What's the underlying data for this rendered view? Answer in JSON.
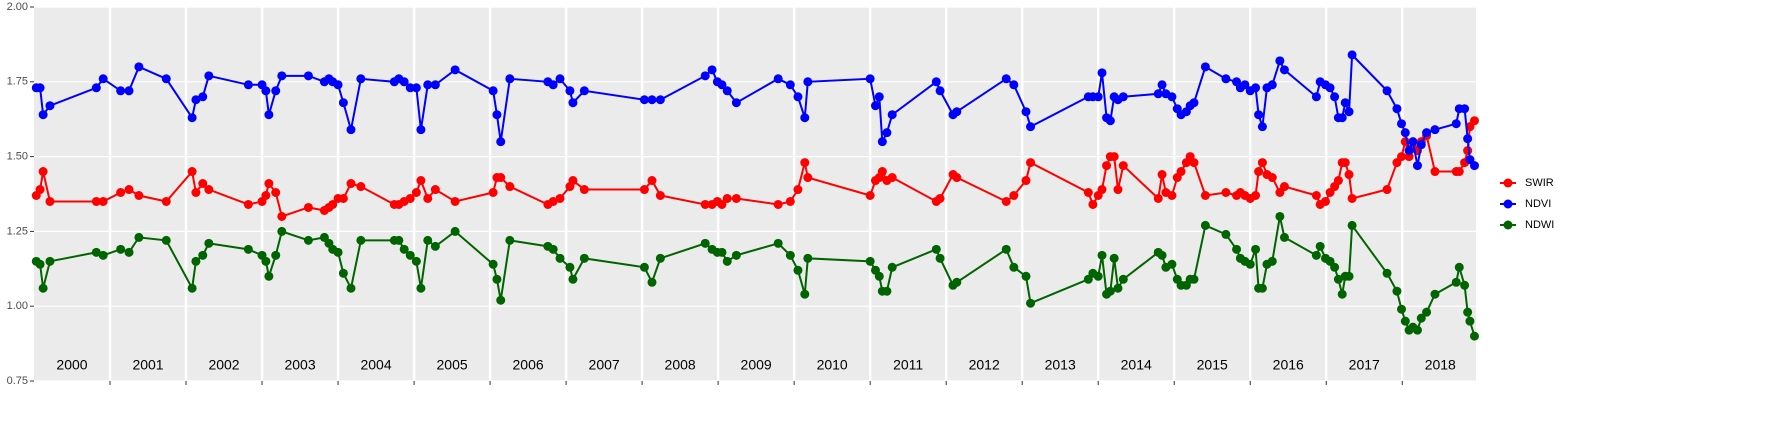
{
  "chart_data": {
    "type": "line",
    "x": [
      2000.03,
      2000.08,
      2000.12,
      2000.21,
      2000.82,
      2000.91,
      2001.14,
      2001.25,
      2001.38,
      2001.74,
      2002.08,
      2002.13,
      2002.22,
      2002.3,
      2002.82,
      2003.0,
      2003.05,
      2003.09,
      2003.18,
      2003.26,
      2003.61,
      2003.82,
      2003.88,
      2003.93,
      2004.0,
      2004.07,
      2004.17,
      2004.3,
      2004.74,
      2004.8,
      2004.87,
      2004.95,
      2005.03,
      2005.09,
      2005.18,
      2005.28,
      2005.54,
      2006.04,
      2006.09,
      2006.14,
      2006.26,
      2006.76,
      2006.83,
      2006.92,
      2007.05,
      2007.09,
      2007.24,
      2008.03,
      2008.13,
      2008.24,
      2008.83,
      2008.92,
      2008.99,
      2009.05,
      2009.12,
      2009.24,
      2009.79,
      2009.95,
      2010.05,
      2010.14,
      2010.18,
      2011.0,
      2011.07,
      2011.12,
      2011.16,
      2011.22,
      2011.29,
      2011.87,
      2011.92,
      2012.09,
      2012.14,
      2012.79,
      2012.89,
      2013.05,
      2013.11,
      2013.87,
      2013.93,
      2014.0,
      2014.05,
      2014.11,
      2014.16,
      2014.21,
      2014.26,
      2014.33,
      2014.79,
      2014.84,
      2014.89,
      2014.97,
      2015.04,
      2015.09,
      2015.16,
      2015.21,
      2015.26,
      2015.41,
      2015.68,
      2015.82,
      2015.87,
      2015.93,
      2016.0,
      2016.07,
      2016.11,
      2016.16,
      2016.22,
      2016.29,
      2016.39,
      2016.45,
      2016.87,
      2016.92,
      2016.99,
      2017.05,
      2017.11,
      2017.16,
      2017.21,
      2017.25,
      2017.3,
      2017.34,
      2017.8,
      2017.93,
      2017.99,
      2018.04,
      2018.09,
      2018.14,
      2018.2,
      2018.25,
      2018.32,
      2018.43,
      2018.71,
      2018.75,
      2018.82,
      2018.86,
      2018.89,
      2018.95
    ],
    "series": [
      {
        "name": "SWIR",
        "color": "#ff0000",
        "values": [
          1.37,
          1.39,
          1.45,
          1.35,
          1.35,
          1.35,
          1.38,
          1.39,
          1.37,
          1.35,
          1.45,
          1.38,
          1.41,
          1.39,
          1.34,
          1.35,
          1.37,
          1.41,
          1.38,
          1.3,
          1.33,
          1.32,
          1.33,
          1.34,
          1.36,
          1.36,
          1.41,
          1.4,
          1.34,
          1.34,
          1.35,
          1.36,
          1.38,
          1.42,
          1.36,
          1.39,
          1.35,
          1.38,
          1.43,
          1.43,
          1.4,
          1.34,
          1.35,
          1.36,
          1.4,
          1.42,
          1.39,
          1.39,
          1.42,
          1.37,
          1.34,
          1.34,
          1.35,
          1.34,
          1.36,
          1.36,
          1.34,
          1.35,
          1.39,
          1.48,
          1.43,
          1.37,
          1.42,
          1.43,
          1.45,
          1.42,
          1.43,
          1.35,
          1.36,
          1.44,
          1.43,
          1.35,
          1.37,
          1.42,
          1.48,
          1.38,
          1.34,
          1.37,
          1.39,
          1.47,
          1.5,
          1.5,
          1.39,
          1.47,
          1.36,
          1.44,
          1.38,
          1.37,
          1.43,
          1.45,
          1.48,
          1.5,
          1.48,
          1.37,
          1.38,
          1.37,
          1.38,
          1.37,
          1.36,
          1.37,
          1.45,
          1.48,
          1.44,
          1.43,
          1.38,
          1.4,
          1.37,
          1.34,
          1.35,
          1.38,
          1.4,
          1.42,
          1.48,
          1.48,
          1.44,
          1.36,
          1.39,
          1.48,
          1.5,
          1.55,
          1.5,
          1.53,
          1.52,
          1.55,
          1.57,
          1.45,
          1.45,
          1.45,
          1.48,
          1.52,
          1.6,
          1.62
        ]
      },
      {
        "name": "NDVI",
        "color": "#0000ff",
        "values": [
          1.73,
          1.73,
          1.64,
          1.67,
          1.73,
          1.76,
          1.72,
          1.72,
          1.8,
          1.76,
          1.63,
          1.69,
          1.7,
          1.77,
          1.74,
          1.74,
          1.72,
          1.64,
          1.72,
          1.77,
          1.77,
          1.75,
          1.76,
          1.75,
          1.74,
          1.68,
          1.59,
          1.76,
          1.75,
          1.76,
          1.75,
          1.73,
          1.73,
          1.59,
          1.74,
          1.74,
          1.79,
          1.72,
          1.64,
          1.55,
          1.76,
          1.75,
          1.74,
          1.76,
          1.72,
          1.68,
          1.72,
          1.69,
          1.69,
          1.69,
          1.77,
          1.79,
          1.75,
          1.74,
          1.72,
          1.68,
          1.76,
          1.74,
          1.7,
          1.63,
          1.75,
          1.76,
          1.67,
          1.7,
          1.55,
          1.58,
          1.64,
          1.75,
          1.72,
          1.64,
          1.65,
          1.76,
          1.74,
          1.65,
          1.6,
          1.7,
          1.7,
          1.7,
          1.78,
          1.63,
          1.62,
          1.7,
          1.69,
          1.7,
          1.71,
          1.74,
          1.71,
          1.7,
          1.66,
          1.64,
          1.65,
          1.67,
          1.68,
          1.8,
          1.76,
          1.75,
          1.73,
          1.74,
          1.72,
          1.73,
          1.64,
          1.6,
          1.73,
          1.74,
          1.82,
          1.79,
          1.7,
          1.75,
          1.74,
          1.73,
          1.7,
          1.63,
          1.63,
          1.68,
          1.65,
          1.84,
          1.72,
          1.66,
          1.61,
          1.58,
          1.52,
          1.55,
          1.47,
          1.54,
          1.58,
          1.59,
          1.61,
          1.66,
          1.66,
          1.56,
          1.49,
          1.47
        ]
      },
      {
        "name": "NDWI",
        "color": "#006400",
        "values": [
          1.15,
          1.14,
          1.06,
          1.15,
          1.18,
          1.17,
          1.19,
          1.18,
          1.23,
          1.22,
          1.06,
          1.15,
          1.17,
          1.21,
          1.19,
          1.17,
          1.15,
          1.1,
          1.17,
          1.25,
          1.22,
          1.23,
          1.21,
          1.19,
          1.18,
          1.11,
          1.06,
          1.22,
          1.22,
          1.22,
          1.19,
          1.17,
          1.15,
          1.06,
          1.22,
          1.2,
          1.25,
          1.14,
          1.09,
          1.02,
          1.22,
          1.2,
          1.19,
          1.16,
          1.13,
          1.09,
          1.16,
          1.13,
          1.08,
          1.16,
          1.21,
          1.19,
          1.18,
          1.18,
          1.15,
          1.17,
          1.21,
          1.17,
          1.12,
          1.04,
          1.16,
          1.15,
          1.12,
          1.1,
          1.05,
          1.05,
          1.13,
          1.19,
          1.16,
          1.07,
          1.08,
          1.19,
          1.13,
          1.1,
          1.01,
          1.09,
          1.11,
          1.1,
          1.17,
          1.04,
          1.05,
          1.16,
          1.06,
          1.09,
          1.18,
          1.17,
          1.13,
          1.14,
          1.09,
          1.07,
          1.07,
          1.09,
          1.09,
          1.27,
          1.24,
          1.19,
          1.16,
          1.15,
          1.14,
          1.19,
          1.06,
          1.06,
          1.14,
          1.15,
          1.3,
          1.23,
          1.17,
          1.2,
          1.16,
          1.15,
          1.13,
          1.09,
          1.04,
          1.1,
          1.1,
          1.27,
          1.11,
          1.05,
          0.99,
          0.95,
          0.92,
          0.93,
          0.92,
          0.96,
          0.98,
          1.04,
          1.08,
          1.13,
          1.07,
          0.98,
          0.95,
          0.9
        ]
      }
    ],
    "xlim": [
      2000,
      2018.97
    ],
    "xticks": [
      {
        "value": 2000.5,
        "label": "2000"
      },
      {
        "value": 2001.5,
        "label": "2001"
      },
      {
        "value": 2002.5,
        "label": "2002"
      },
      {
        "value": 2003.5,
        "label": "2003"
      },
      {
        "value": 2004.5,
        "label": "2004"
      },
      {
        "value": 2005.5,
        "label": "2005"
      },
      {
        "value": 2006.5,
        "label": "2006"
      },
      {
        "value": 2007.5,
        "label": "2007"
      },
      {
        "value": 2008.5,
        "label": "2008"
      },
      {
        "value": 2009.5,
        "label": "2009"
      },
      {
        "value": 2010.5,
        "label": "2010"
      },
      {
        "value": 2011.5,
        "label": "2011"
      },
      {
        "value": 2012.5,
        "label": "2012"
      },
      {
        "value": 2013.5,
        "label": "2013"
      },
      {
        "value": 2014.5,
        "label": "2014"
      },
      {
        "value": 2015.5,
        "label": "2015"
      },
      {
        "value": 2016.5,
        "label": "2016"
      },
      {
        "value": 2017.5,
        "label": "2017"
      },
      {
        "value": 2018.5,
        "label": "2018"
      }
    ],
    "xgrid": [
      2001,
      2002,
      2003,
      2004,
      2005,
      2006,
      2007,
      2008,
      2009,
      2010,
      2011,
      2012,
      2013,
      2014,
      2015,
      2016,
      2017,
      2018
    ],
    "ylim": [
      0.75,
      2.0
    ],
    "yticks": [
      {
        "value": 0.75,
        "label": "0.75"
      },
      {
        "value": 1.0,
        "label": "1.00"
      },
      {
        "value": 1.25,
        "label": "1.25"
      },
      {
        "value": 1.5,
        "label": "1.50"
      },
      {
        "value": 1.75,
        "label": "1.75"
      },
      {
        "value": 2.0,
        "label": "2.00"
      }
    ],
    "grid": true,
    "legend": "right"
  }
}
